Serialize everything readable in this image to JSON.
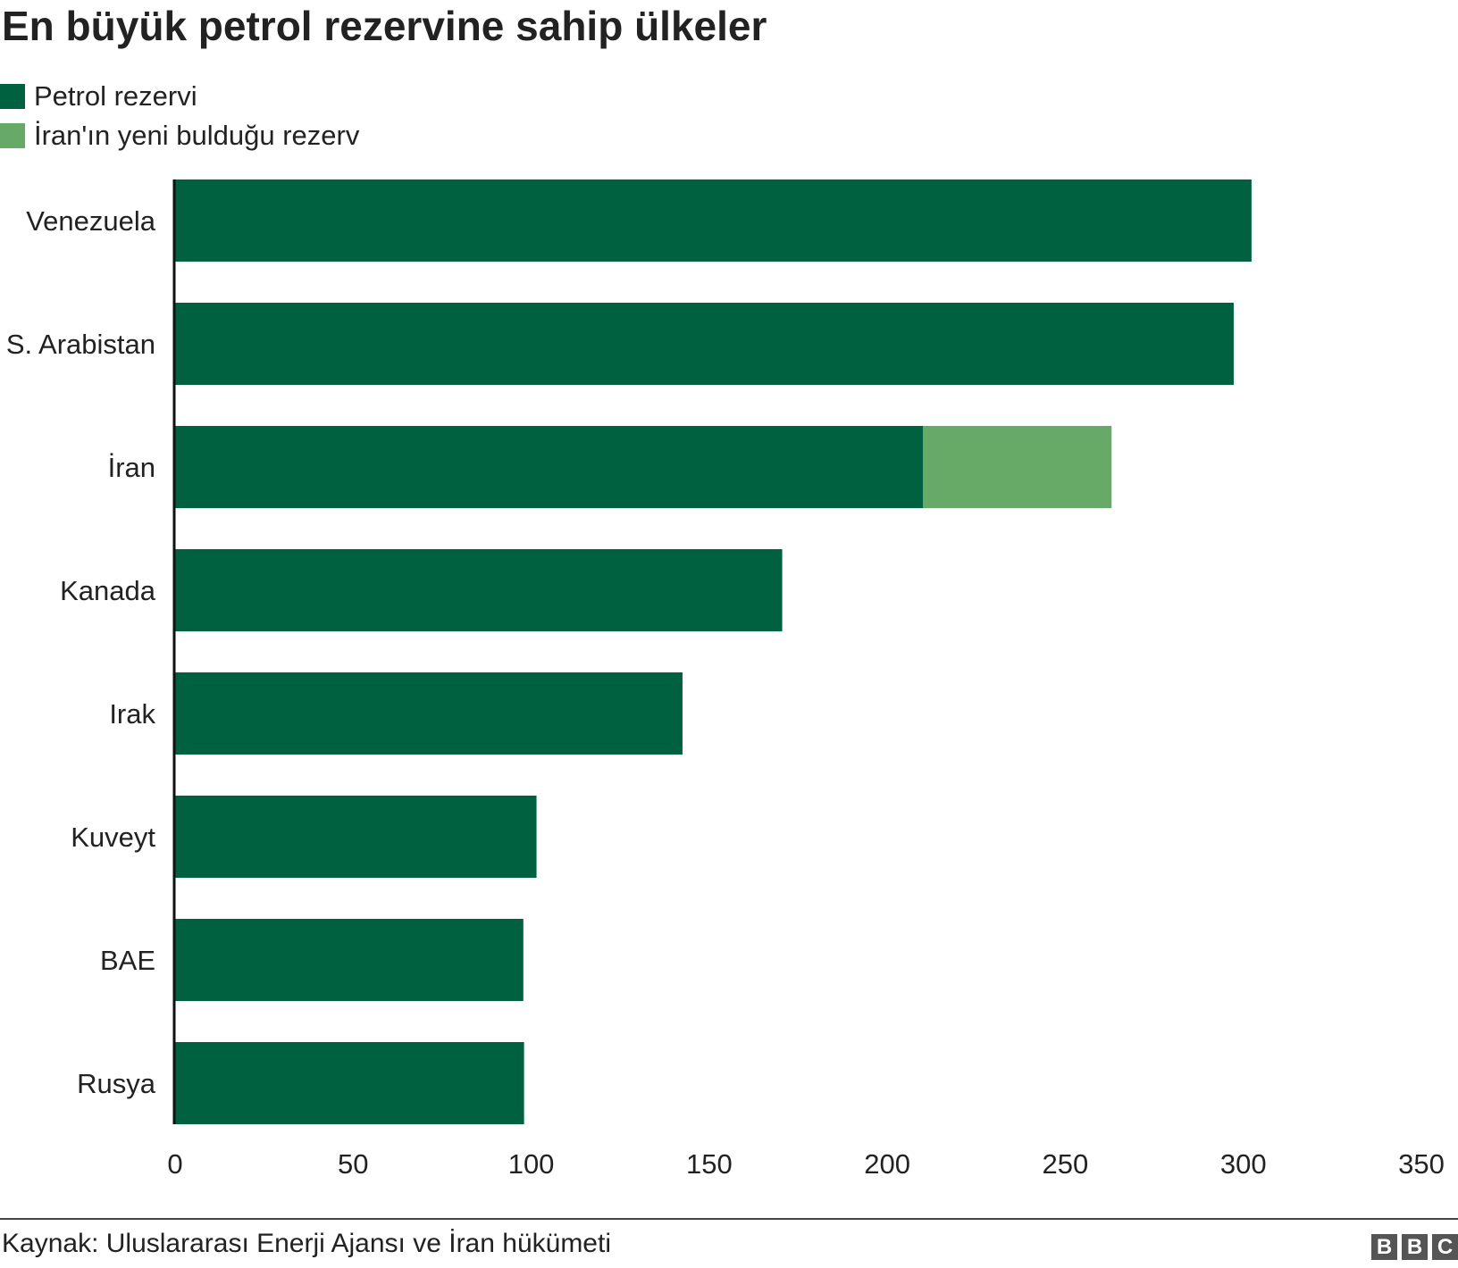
{
  "chart_data": {
    "type": "bar",
    "orientation": "horizontal",
    "stacked": true,
    "title": "En büyük petrol rezervine sahip ülkeler",
    "categories": [
      "Venezuela",
      "S. Arabistan",
      "İran",
      "Kanada",
      "Irak",
      "Kuveyt",
      "BAE",
      "Rusya"
    ],
    "series": [
      {
        "name": "Petrol rezervi",
        "color": "#006141",
        "values": [
          302.3,
          297.3,
          210,
          170.5,
          142.5,
          101.5,
          97.8,
          98
        ]
      },
      {
        "name": "İran'ın yeni bulduğu rezerv",
        "color": "#67aa67",
        "values": [
          0,
          0,
          53,
          0,
          0,
          0,
          0,
          0
        ]
      }
    ],
    "xlim": [
      0,
      350
    ],
    "xticks": [
      "0",
      "50",
      "100",
      "150",
      "200",
      "250",
      "300",
      "350"
    ],
    "grid": false,
    "legend_position": "top-left"
  },
  "footer": {
    "source": "Kaynak: Uluslararası Enerji Ajansı ve İran hükümeti",
    "logo_letters": [
      "B",
      "B",
      "C"
    ]
  }
}
